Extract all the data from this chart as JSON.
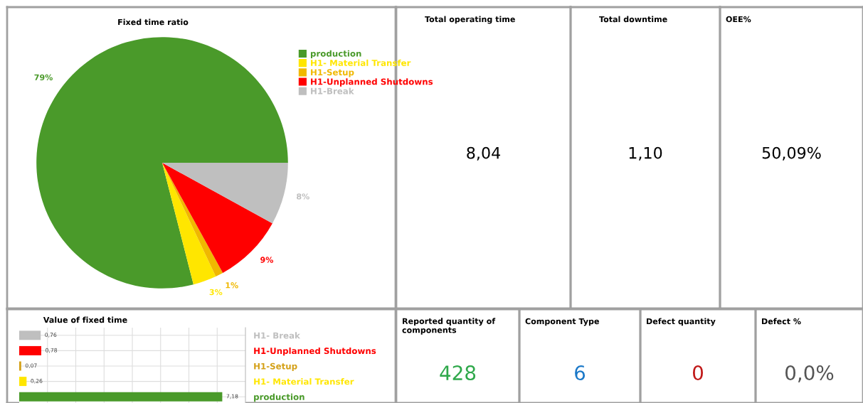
{
  "chart_data": [
    {
      "type": "pie",
      "title": "Fixed time ratio",
      "categories": [
        "production",
        "H1- Material Transfer",
        "H1-Setup",
        "H1-Unplanned Shutdowns",
        "H1-Break"
      ],
      "values": [
        79,
        3,
        1,
        9,
        8
      ],
      "value_labels": [
        "79%",
        "3%",
        "1%",
        "9%",
        "8%"
      ],
      "colors": [
        "#4a9a2a",
        "#ffe600",
        "#f0b800",
        "#ff0000",
        "#bfbfbf"
      ],
      "legend": "top right"
    },
    {
      "type": "other",
      "title": "Total operating time",
      "annotations": [
        "8,04"
      ],
      "color": "#000000"
    },
    {
      "type": "other",
      "title": "Total downtime",
      "annotations": [
        "1,10"
      ],
      "color": "#000000"
    },
    {
      "type": "other",
      "title": "OEE%",
      "annotations": [
        "50,09%"
      ],
      "color": "#000000"
    },
    {
      "type": "bar",
      "orientation": "horizontal",
      "title": "Value of fixed time",
      "categories": [
        "H1- Break",
        "H1-Unplanned Shutdowns",
        "H1-Setup",
        "H1- Material Transfer",
        "production"
      ],
      "values": [
        0.76,
        0.78,
        0.07,
        0.26,
        7.18
      ],
      "value_labels": [
        "0,76",
        "0,78",
        "0,07",
        "0,26",
        "7,18"
      ],
      "colors": [
        "#bfbfbf",
        "#ff0000",
        "#d4a017",
        "#ffe600",
        "#4a9a2a"
      ],
      "xlim": [
        0,
        8
      ],
      "xticks": [
        {
          "value": 1,
          "label": null
        },
        {
          "value": 2,
          "label": null
        },
        {
          "value": 3,
          "label": null
        },
        {
          "value": 4,
          "label": null
        },
        {
          "value": 5,
          "label": null
        },
        {
          "value": 6,
          "label": null
        },
        {
          "value": 7,
          "label": null
        }
      ],
      "grid": true,
      "tick_labels": "y"
    },
    {
      "type": "other",
      "title": "Reported quantity of components",
      "annotations": [
        "428"
      ],
      "color": "#2ea84a"
    },
    {
      "type": "other",
      "title": "Component Type",
      "annotations": [
        "6"
      ],
      "color": "#1a78c8"
    },
    {
      "type": "other",
      "title": "Defect quantity",
      "annotations": [
        "0"
      ],
      "color": "#c01818"
    },
    {
      "type": "other",
      "title": "Defect %",
      "annotations": [
        "0,0%"
      ],
      "color": "#555555"
    }
  ]
}
